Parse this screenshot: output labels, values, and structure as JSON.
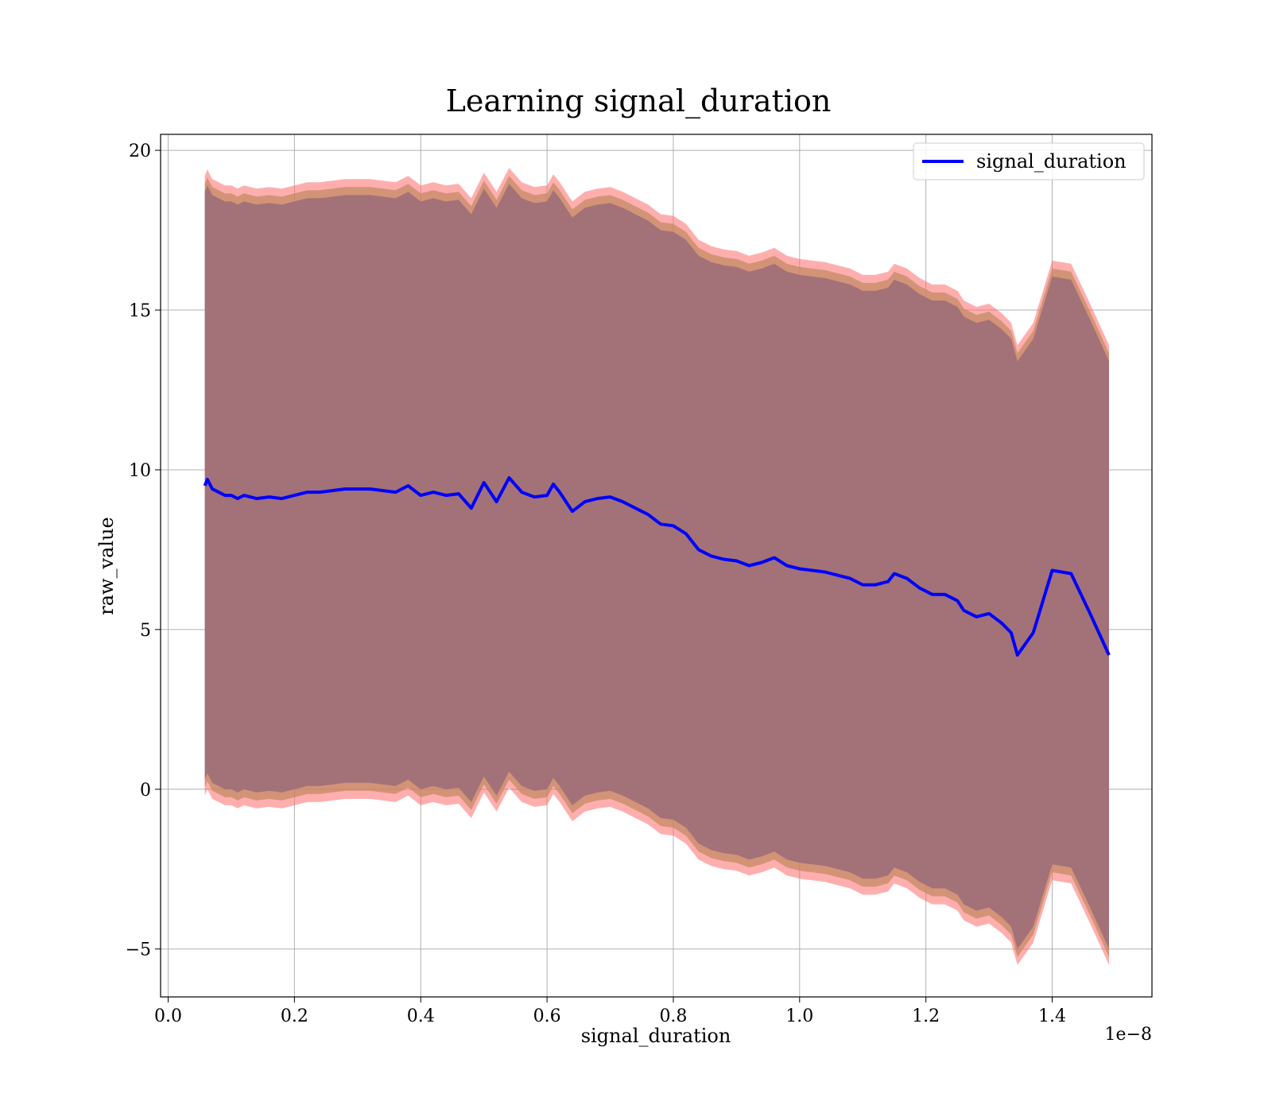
{
  "chart_data": {
    "type": "line",
    "title": "Learning signal_duration",
    "xlabel": "signal_duration",
    "ylabel": "raw_value",
    "x_offset_label": "1e−8",
    "xlim": [
      -0.012,
      1.558
    ],
    "ylim": [
      -6.5,
      20.5
    ],
    "x_ticks": [
      0.0,
      0.2,
      0.4,
      0.6,
      0.8,
      1.0,
      1.2,
      1.4
    ],
    "x_tick_labels": [
      "0.0",
      "0.2",
      "0.4",
      "0.6",
      "0.8",
      "1.0",
      "1.2",
      "1.4"
    ],
    "y_ticks": [
      -5,
      0,
      5,
      10,
      15,
      20
    ],
    "y_tick_labels": [
      "−5",
      "0",
      "5",
      "10",
      "15",
      "20"
    ],
    "grid": true,
    "legend_position": "top-right",
    "colors": {
      "line": "#0000ff",
      "band_outer": "#ff6b6b",
      "band_mid": "#c08860",
      "band_inner": "#a07078"
    },
    "series": [
      {
        "name": "signal_duration",
        "x": [
          0.058,
          0.062,
          0.07,
          0.08,
          0.09,
          0.1,
          0.11,
          0.12,
          0.14,
          0.16,
          0.18,
          0.2,
          0.22,
          0.24,
          0.26,
          0.28,
          0.3,
          0.32,
          0.34,
          0.36,
          0.38,
          0.4,
          0.42,
          0.44,
          0.46,
          0.48,
          0.5,
          0.52,
          0.54,
          0.56,
          0.58,
          0.6,
          0.61,
          0.62,
          0.64,
          0.66,
          0.68,
          0.7,
          0.72,
          0.74,
          0.76,
          0.78,
          0.8,
          0.82,
          0.84,
          0.86,
          0.88,
          0.9,
          0.92,
          0.94,
          0.96,
          0.98,
          1.0,
          1.02,
          1.04,
          1.06,
          1.08,
          1.1,
          1.12,
          1.14,
          1.15,
          1.17,
          1.19,
          1.21,
          1.23,
          1.25,
          1.26,
          1.28,
          1.3,
          1.32,
          1.335,
          1.345,
          1.37,
          1.4,
          1.43,
          1.46,
          1.49
        ],
        "y": [
          9.5,
          9.7,
          9.4,
          9.3,
          9.2,
          9.2,
          9.1,
          9.2,
          9.1,
          9.15,
          9.1,
          9.2,
          9.3,
          9.3,
          9.35,
          9.4,
          9.4,
          9.4,
          9.35,
          9.3,
          9.5,
          9.2,
          9.3,
          9.2,
          9.25,
          8.8,
          9.6,
          9.0,
          9.75,
          9.3,
          9.15,
          9.2,
          9.55,
          9.3,
          8.7,
          9.0,
          9.1,
          9.15,
          9.0,
          8.8,
          8.6,
          8.3,
          8.25,
          8.0,
          7.5,
          7.3,
          7.2,
          7.15,
          7.0,
          7.1,
          7.25,
          7.0,
          6.9,
          6.85,
          6.8,
          6.7,
          6.6,
          6.4,
          6.4,
          6.5,
          6.75,
          6.6,
          6.3,
          6.1,
          6.1,
          5.9,
          5.6,
          5.4,
          5.5,
          5.2,
          4.9,
          4.2,
          4.9,
          6.85,
          6.75,
          5.5,
          4.2
        ],
        "band_sigma": 9.2,
        "band_sigma_extra": 0.5
      }
    ]
  }
}
